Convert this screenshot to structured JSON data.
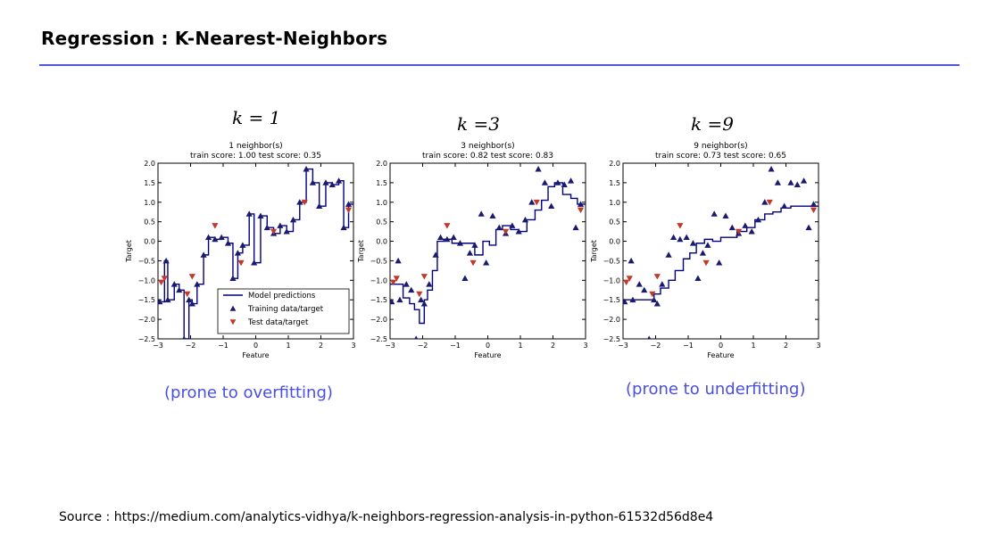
{
  "slide": {
    "title": "Regression : K-Nearest-Neighbors",
    "source": "Source : https://medium.com/analytics-vidhya/k-neighbors-regression-analysis-in-python-61532d56d8e4"
  },
  "panels": [
    {
      "k_label": "k = 1",
      "caption": "(prone to overfitting)"
    },
    {
      "k_label": "k =3",
      "caption": ""
    },
    {
      "k_label": "k =9",
      "caption": "(prone to underfitting)"
    }
  ],
  "colors": {
    "model_line": "#000080",
    "train_marker": "#1a1a6e",
    "test_marker": "#c0392b",
    "accent": "#4a4fdc",
    "rule": "#4f57d8"
  },
  "chart_data": [
    {
      "type": "line",
      "title": "1 neighbor(s)",
      "subtitle": "train score: 1.00 test score: 0.35",
      "xlabel": "Feature",
      "ylabel": "Target",
      "xlim": [
        -3,
        3
      ],
      "ylim": [
        -2.5,
        2.0
      ],
      "xticks": [
        -3,
        -2,
        -1,
        0,
        1,
        2,
        3
      ],
      "yticks": [
        2.0,
        1.5,
        1.0,
        0.5,
        0.0,
        -0.5,
        -1.0,
        -1.5,
        -2.0,
        -2.5
      ],
      "legend": {
        "placement": "lower-right",
        "entries": [
          "Model predictions",
          "Training data/target",
          "Test data/target"
        ]
      },
      "model_predictions": {
        "x": [
          -3,
          -2.95,
          -2.8,
          -2.7,
          -2.5,
          -2.35,
          -2.2,
          -2.05,
          -1.95,
          -1.8,
          -1.6,
          -1.45,
          -1.25,
          -1.05,
          -0.85,
          -0.7,
          -0.55,
          -0.4,
          -0.2,
          -0.05,
          0.15,
          0.35,
          0.55,
          0.75,
          0.95,
          1.15,
          1.35,
          1.55,
          1.75,
          1.95,
          2.15,
          2.35,
          2.55,
          2.7,
          2.85,
          3
        ],
        "y": [
          -1.55,
          -1.55,
          -0.5,
          -1.5,
          -1.1,
          -1.25,
          -2.5,
          -1.5,
          -1.6,
          -1.1,
          -0.35,
          0.1,
          0.05,
          0.1,
          -0.05,
          -0.95,
          -0.3,
          -0.1,
          0.7,
          -0.55,
          0.65,
          0.35,
          0.2,
          0.4,
          0.25,
          0.55,
          1.0,
          1.85,
          1.5,
          0.9,
          1.5,
          1.45,
          1.55,
          0.35,
          0.95,
          0.95
        ]
      },
      "training_data": {
        "x": [
          -2.95,
          -2.75,
          -2.7,
          -2.5,
          -2.35,
          -2.2,
          -2.05,
          -1.95,
          -1.8,
          -1.6,
          -1.45,
          -1.25,
          -1.05,
          -0.85,
          -0.7,
          -0.55,
          -0.4,
          -0.2,
          -0.05,
          0.15,
          0.35,
          0.55,
          0.75,
          0.95,
          1.15,
          1.35,
          1.55,
          1.75,
          1.95,
          2.15,
          2.35,
          2.55,
          2.7,
          2.85
        ],
        "y": [
          -1.55,
          -0.5,
          -1.5,
          -1.1,
          -1.25,
          -2.5,
          -1.5,
          -1.6,
          -1.1,
          -0.35,
          0.1,
          0.05,
          0.1,
          -0.05,
          -0.95,
          -0.3,
          -0.1,
          0.7,
          -0.55,
          0.65,
          0.35,
          0.2,
          0.4,
          0.25,
          0.55,
          1.0,
          1.85,
          1.5,
          0.9,
          1.5,
          1.45,
          1.55,
          0.35,
          0.95
        ]
      },
      "test_data": {
        "x": [
          -2.9,
          -2.8,
          -2.1,
          -1.95,
          -1.25,
          -0.45,
          0.55,
          1.5,
          2.85
        ],
        "y": [
          -1.05,
          -0.95,
          -1.35,
          -0.9,
          0.4,
          -0.55,
          0.25,
          1.0,
          0.8
        ]
      }
    },
    {
      "type": "line",
      "title": "3 neighbor(s)",
      "subtitle": "train score: 0.82 test score: 0.83",
      "xlabel": "Feature",
      "ylabel": "Target",
      "xlim": [
        -3,
        3
      ],
      "ylim": [
        -2.5,
        2.0
      ],
      "xticks": [
        -3,
        -2,
        -1,
        0,
        1,
        2,
        3
      ],
      "yticks": [
        2.0,
        1.5,
        1.0,
        0.5,
        0.0,
        -0.5,
        -1.0,
        -1.5,
        -2.0,
        -2.5
      ],
      "model_predictions": {
        "x": [
          -3,
          -2.7,
          -2.6,
          -2.4,
          -2.25,
          -2.1,
          -1.95,
          -1.85,
          -1.7,
          -1.55,
          -1.35,
          -1.1,
          -0.85,
          -0.6,
          -0.4,
          -0.15,
          0.05,
          0.25,
          0.45,
          0.7,
          0.95,
          1.2,
          1.45,
          1.65,
          1.85,
          2.05,
          2.3,
          2.55,
          2.75,
          3
        ],
        "y": [
          -1.1,
          -1.1,
          -1.45,
          -1.6,
          -1.75,
          -2.1,
          -1.5,
          -1.25,
          -0.75,
          0.0,
          0.05,
          -0.05,
          -0.05,
          -0.05,
          -0.35,
          0.0,
          -0.1,
          0.3,
          0.4,
          0.3,
          0.25,
          0.55,
          0.8,
          1.05,
          1.4,
          1.5,
          1.2,
          1.1,
          0.95,
          0.95
        ]
      },
      "training_data": {
        "x": [
          -2.95,
          -2.75,
          -2.7,
          -2.5,
          -2.35,
          -2.2,
          -2.05,
          -1.95,
          -1.8,
          -1.6,
          -1.45,
          -1.25,
          -1.05,
          -0.85,
          -0.7,
          -0.55,
          -0.4,
          -0.2,
          -0.05,
          0.15,
          0.35,
          0.55,
          0.75,
          0.95,
          1.15,
          1.35,
          1.55,
          1.75,
          1.95,
          2.15,
          2.35,
          2.55,
          2.7,
          2.85
        ],
        "y": [
          -1.55,
          -0.5,
          -1.5,
          -1.1,
          -1.25,
          -2.5,
          -1.5,
          -1.6,
          -1.1,
          -0.35,
          0.1,
          0.05,
          0.1,
          -0.05,
          -0.95,
          -0.3,
          -0.1,
          0.7,
          -0.55,
          0.65,
          0.35,
          0.2,
          0.4,
          0.25,
          0.55,
          1.0,
          1.85,
          1.5,
          0.9,
          1.5,
          1.45,
          1.55,
          0.35,
          0.95
        ]
      },
      "test_data": {
        "x": [
          -2.9,
          -2.8,
          -2.1,
          -1.95,
          -1.25,
          -0.45,
          0.55,
          1.5,
          2.85
        ],
        "y": [
          -1.05,
          -0.95,
          -1.35,
          -0.9,
          0.4,
          -0.55,
          0.25,
          1.0,
          0.8
        ]
      }
    },
    {
      "type": "line",
      "title": "9 neighbor(s)",
      "subtitle": "train score: 0.73 test score: 0.65",
      "xlabel": "Feature",
      "ylabel": "Target",
      "xlim": [
        -3,
        3
      ],
      "ylim": [
        -2.5,
        2.0
      ],
      "xticks": [
        -3,
        -2,
        -1,
        0,
        1,
        2,
        3
      ],
      "yticks": [
        2.0,
        1.5,
        1.0,
        0.5,
        0.0,
        -0.5,
        -1.0,
        -1.5,
        -2.0,
        -2.5
      ],
      "model_predictions": {
        "x": [
          -3,
          -2.2,
          -2.05,
          -1.85,
          -1.6,
          -1.4,
          -1.15,
          -0.95,
          -0.75,
          -0.5,
          -0.25,
          0.0,
          0.25,
          0.5,
          0.8,
          1.05,
          1.35,
          1.6,
          1.85,
          2.15,
          2.5,
          3
        ],
        "y": [
          -1.5,
          -1.5,
          -1.35,
          -1.2,
          -1.0,
          -0.75,
          -0.45,
          -0.3,
          -0.05,
          0.05,
          0.0,
          0.1,
          0.1,
          0.25,
          0.35,
          0.55,
          0.7,
          0.75,
          0.85,
          0.9,
          0.9,
          0.9
        ]
      },
      "training_data": {
        "x": [
          -2.95,
          -2.75,
          -2.7,
          -2.5,
          -2.35,
          -2.2,
          -2.05,
          -1.95,
          -1.8,
          -1.6,
          -1.45,
          -1.25,
          -1.05,
          -0.85,
          -0.7,
          -0.55,
          -0.4,
          -0.2,
          -0.05,
          0.15,
          0.35,
          0.55,
          0.75,
          0.95,
          1.15,
          1.35,
          1.55,
          1.75,
          1.95,
          2.15,
          2.35,
          2.55,
          2.7,
          2.85
        ],
        "y": [
          -1.55,
          -0.5,
          -1.5,
          -1.1,
          -1.25,
          -2.5,
          -1.5,
          -1.6,
          -1.1,
          -0.35,
          0.1,
          0.05,
          0.1,
          -0.05,
          -0.95,
          -0.3,
          -0.1,
          0.7,
          -0.55,
          0.65,
          0.35,
          0.2,
          0.4,
          0.25,
          0.55,
          1.0,
          1.85,
          1.5,
          0.9,
          1.5,
          1.45,
          1.55,
          0.35,
          0.95
        ]
      },
      "test_data": {
        "x": [
          -2.9,
          -2.8,
          -2.1,
          -1.95,
          -1.25,
          -0.45,
          0.55,
          1.5,
          2.85
        ],
        "y": [
          -1.05,
          -0.95,
          -1.35,
          -0.9,
          0.4,
          -0.55,
          0.25,
          1.0,
          0.8
        ]
      }
    }
  ]
}
